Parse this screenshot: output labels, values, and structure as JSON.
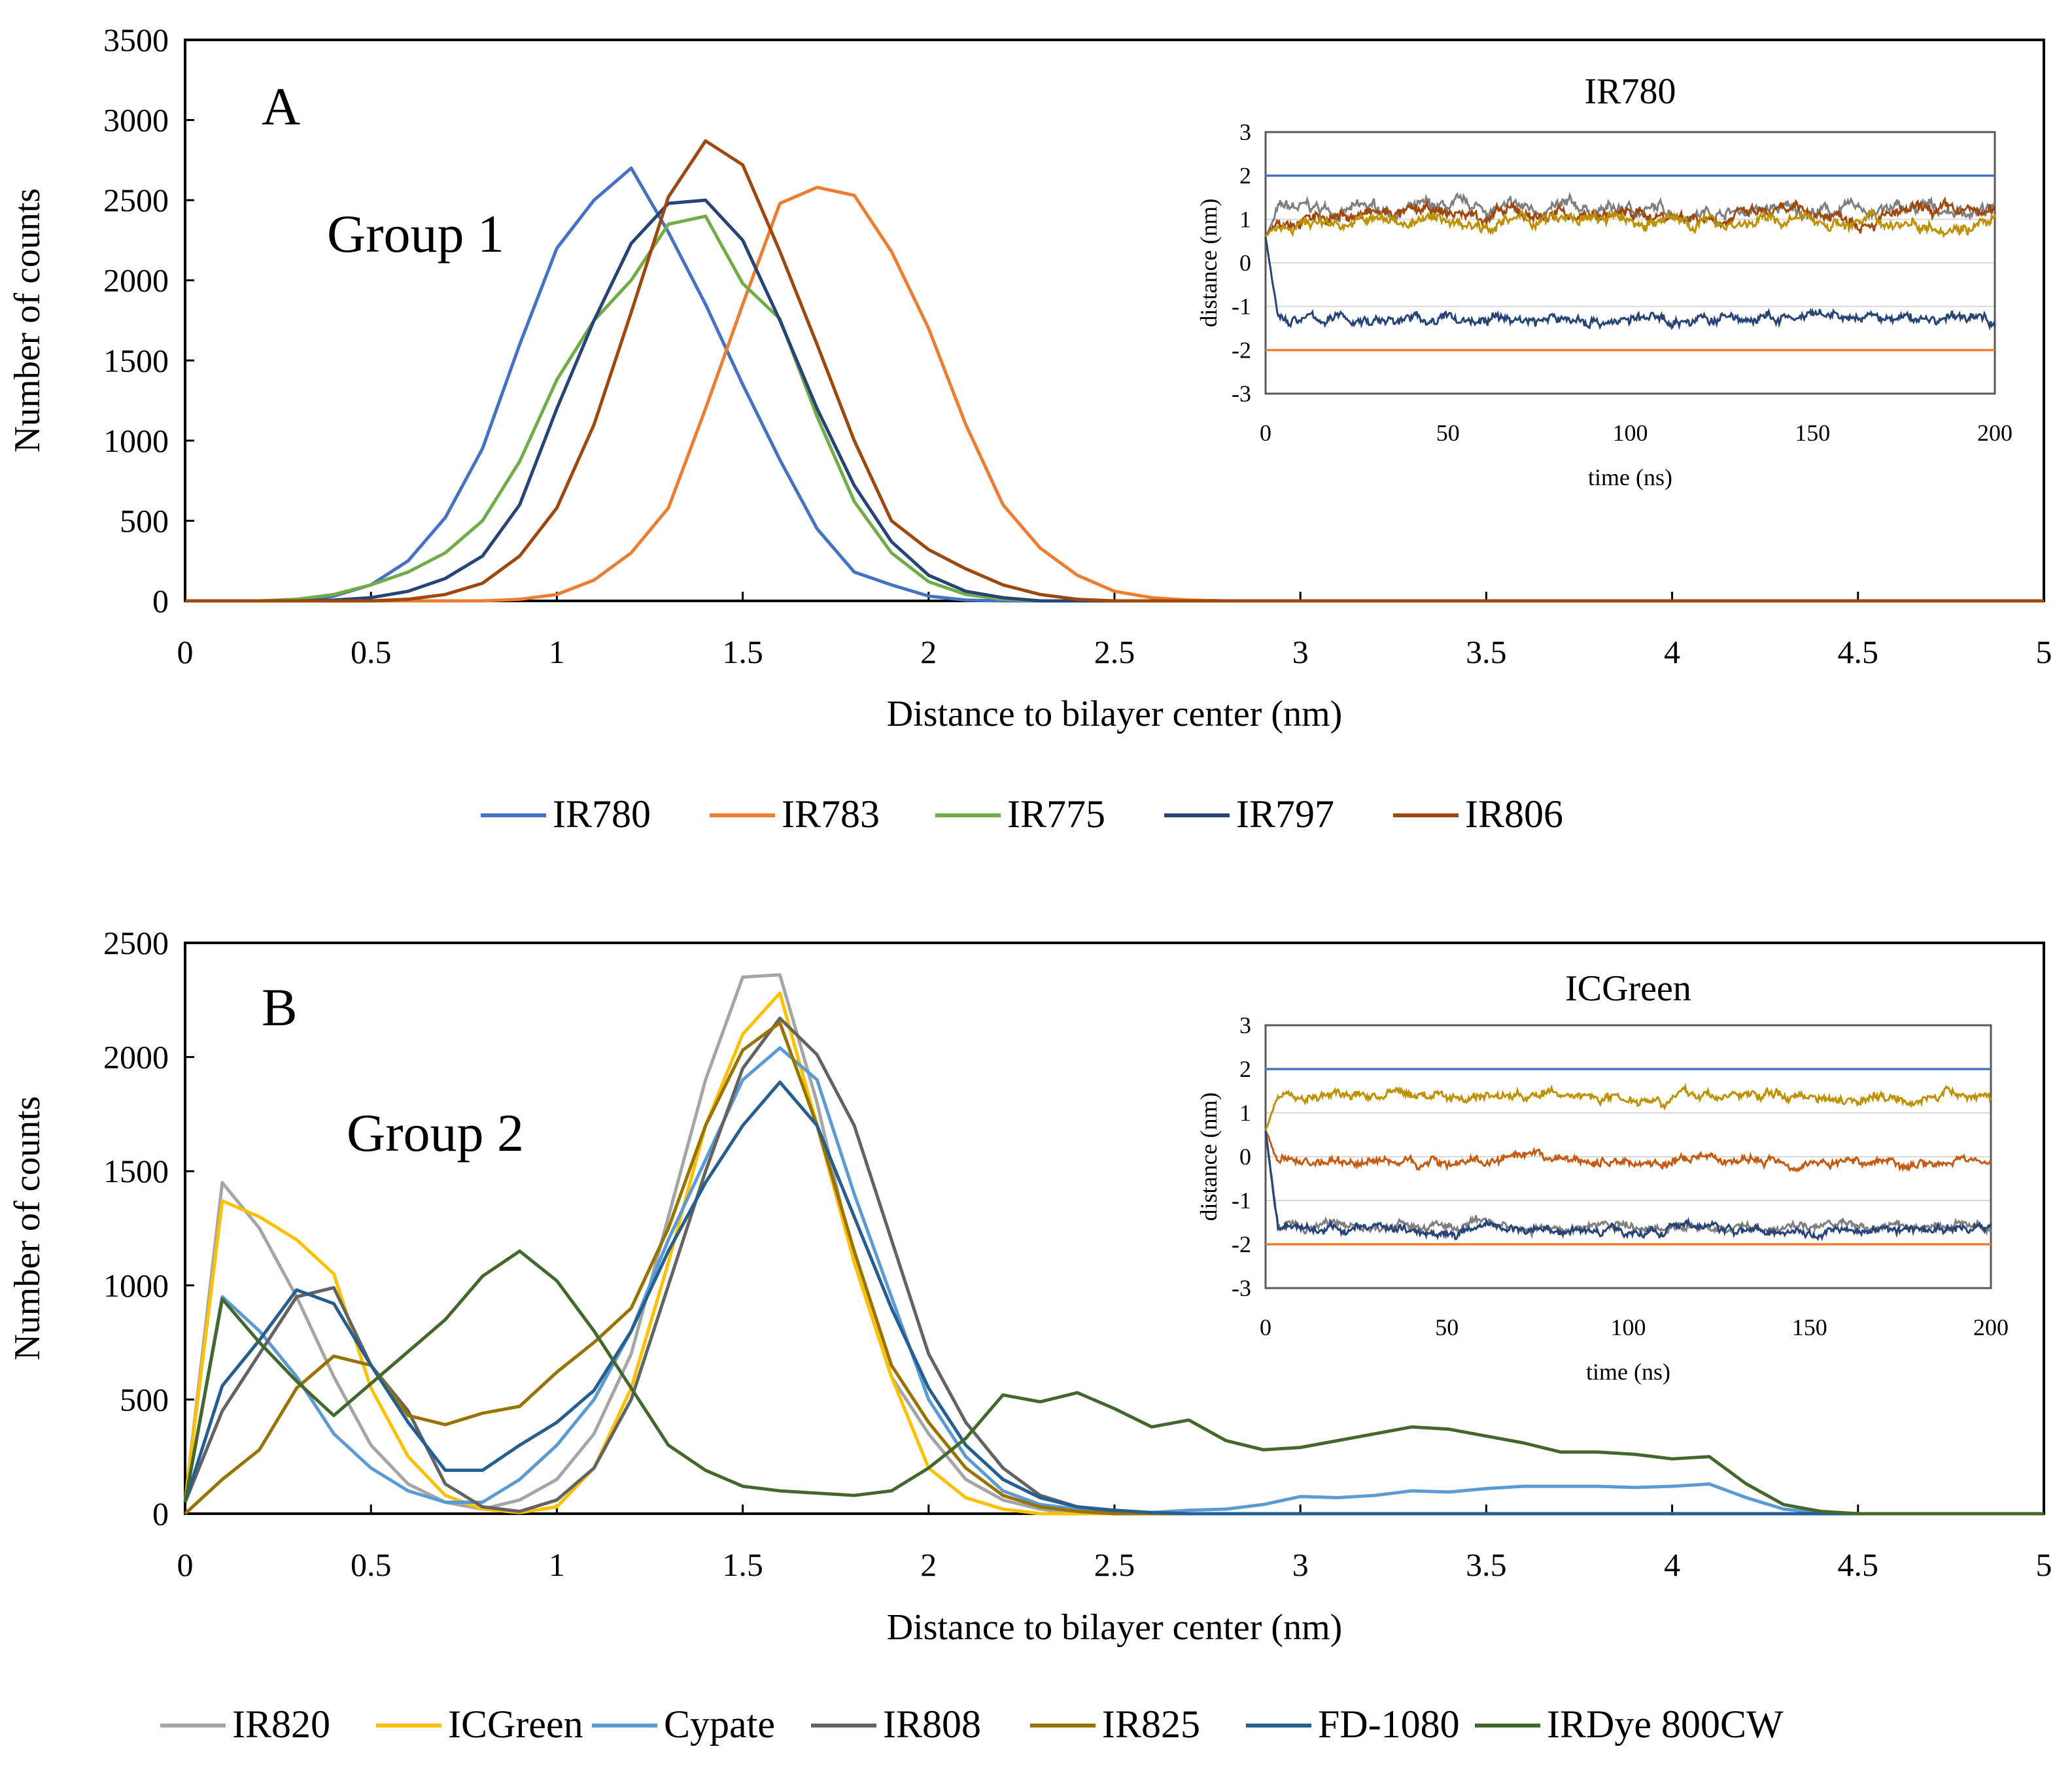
{
  "chart_data": [
    {
      "type": "line",
      "panel_label": "A",
      "annotation": "Group 1",
      "xlabel": "Distance to bilayer center (nm)",
      "ylabel": "Number of counts",
      "xlim": [
        0,
        5
      ],
      "ylim": [
        0,
        3500
      ],
      "xticks": [
        "0",
        "0.5",
        "1",
        "1.5",
        "2",
        "2.5",
        "3",
        "3.5",
        "4",
        "4.5",
        "5"
      ],
      "yticks": [
        "0",
        "500",
        "1000",
        "1500",
        "2000",
        "2500",
        "3000",
        "3500"
      ],
      "x_start": 0,
      "x_step": 0.1,
      "legend_position": "bottom",
      "series": [
        {
          "name": "IR780",
          "color": "#4472C4",
          "values": [
            0,
            0,
            0,
            0,
            30,
            100,
            250,
            520,
            950,
            1600,
            2200,
            2500,
            2700,
            2300,
            1850,
            1350,
            880,
            450,
            180,
            100,
            30,
            5,
            0,
            0,
            0,
            0,
            0,
            0,
            0,
            0,
            0,
            0,
            0,
            0,
            0,
            0,
            0,
            0,
            0,
            0,
            0,
            0,
            0,
            0,
            0,
            0,
            0,
            0,
            0,
            0,
            0
          ]
        },
        {
          "name": "IR783",
          "color": "#ED7D31",
          "values": [
            0,
            0,
            0,
            0,
            0,
            0,
            0,
            0,
            0,
            10,
            40,
            130,
            300,
            580,
            1200,
            1850,
            2480,
            2580,
            2530,
            2180,
            1700,
            1100,
            600,
            330,
            160,
            60,
            20,
            5,
            0,
            0,
            0,
            0,
            0,
            0,
            0,
            0,
            0,
            0,
            0,
            0,
            0,
            0,
            0,
            0,
            0,
            0,
            0,
            0,
            0,
            0,
            0
          ]
        },
        {
          "name": "IR775",
          "color": "#70AD47",
          "values": [
            0,
            0,
            0,
            10,
            40,
            100,
            180,
            300,
            500,
            870,
            1380,
            1750,
            2000,
            2350,
            2400,
            1980,
            1760,
            1150,
            620,
            300,
            120,
            40,
            10,
            0,
            0,
            0,
            0,
            0,
            0,
            0,
            0,
            0,
            0,
            0,
            0,
            0,
            0,
            0,
            0,
            0,
            0,
            0,
            0,
            0,
            0,
            0,
            0,
            0,
            0,
            0,
            0
          ]
        },
        {
          "name": "IR797",
          "color": "#264478",
          "values": [
            0,
            0,
            0,
            0,
            5,
            20,
            60,
            140,
            280,
            600,
            1200,
            1750,
            2230,
            2480,
            2500,
            2250,
            1750,
            1200,
            720,
            370,
            160,
            60,
            20,
            0,
            0,
            0,
            0,
            0,
            0,
            0,
            0,
            0,
            0,
            0,
            0,
            0,
            0,
            0,
            0,
            0,
            0,
            0,
            0,
            0,
            0,
            0,
            0,
            0,
            0,
            0,
            0
          ]
        },
        {
          "name": "IR806",
          "color": "#9E480E",
          "values": [
            0,
            0,
            0,
            0,
            0,
            0,
            10,
            40,
            110,
            280,
            580,
            1100,
            1800,
            2520,
            2870,
            2720,
            2180,
            1600,
            1000,
            500,
            320,
            200,
            100,
            40,
            10,
            0,
            0,
            0,
            0,
            0,
            0,
            0,
            0,
            0,
            0,
            0,
            0,
            0,
            0,
            0,
            0,
            0,
            0,
            0,
            0,
            0,
            0,
            0,
            0,
            0,
            0
          ]
        }
      ],
      "inset": {
        "title": "IR780",
        "xlabel": "time (ns)",
        "ylabel": "distance (nm)",
        "xlim": [
          0,
          200
        ],
        "ylim": [
          -3,
          3
        ],
        "xticks": [
          "0",
          "50",
          "100",
          "150",
          "200"
        ],
        "yticks": [
          "3",
          "2",
          "1",
          "0",
          "-1",
          "-2",
          "-3"
        ],
        "series": [
          {
            "color": "#4472C4",
            "mean": 2,
            "noise": 0
          },
          {
            "color": "#ED7D31",
            "mean": -2,
            "noise": 0
          },
          {
            "color": "#7F7F7F",
            "mean": 1.2,
            "noise": 0.25
          },
          {
            "color": "#9E480E",
            "mean": 1.1,
            "noise": 0.25
          },
          {
            "color": "#BF9000",
            "mean": 0.95,
            "noise": 0.25
          },
          {
            "color": "#264478",
            "mean": -1.3,
            "noise": 0.22
          }
        ]
      }
    },
    {
      "type": "line",
      "panel_label": "B",
      "annotation": "Group 2",
      "xlabel": "Distance to bilayer center (nm)",
      "ylabel": "Number of counts",
      "xlim": [
        0,
        5
      ],
      "ylim": [
        0,
        2500
      ],
      "xticks": [
        "0",
        "0.5",
        "1",
        "1.5",
        "2",
        "2.5",
        "3",
        "3.5",
        "4",
        "4.5",
        "5"
      ],
      "yticks": [
        "0",
        "500",
        "1000",
        "1500",
        "2000",
        "2500"
      ],
      "x_start": 0,
      "x_step": 0.1,
      "legend_position": "bottom",
      "series": [
        {
          "name": "IR820",
          "color": "#A5A5A5",
          "values": [
            50,
            1450,
            1250,
            950,
            600,
            300,
            130,
            50,
            20,
            60,
            150,
            350,
            700,
            1300,
            1900,
            2350,
            2360,
            1800,
            1100,
            600,
            350,
            150,
            60,
            20,
            0,
            0,
            0,
            0,
            0,
            0,
            0,
            0,
            0,
            0,
            0,
            0,
            0,
            0,
            0,
            0,
            0,
            0,
            0,
            0,
            0,
            0,
            0,
            0,
            0,
            0,
            0
          ]
        },
        {
          "name": "ICGreen",
          "color": "#FFC000",
          "values": [
            50,
            1370,
            1300,
            1200,
            1050,
            550,
            250,
            80,
            20,
            5,
            30,
            200,
            550,
            1100,
            1700,
            2100,
            2280,
            1700,
            1100,
            600,
            200,
            70,
            20,
            0,
            0,
            0,
            0,
            0,
            0,
            0,
            0,
            0,
            0,
            0,
            0,
            0,
            0,
            0,
            0,
            0,
            0,
            0,
            0,
            0,
            0,
            0,
            0,
            0,
            0,
            0,
            0
          ]
        },
        {
          "name": "Cypate",
          "color": "#5B9BD5",
          "values": [
            50,
            950,
            800,
            600,
            350,
            200,
            100,
            50,
            50,
            150,
            300,
            500,
            800,
            1200,
            1550,
            1900,
            2040,
            1900,
            1400,
            950,
            500,
            250,
            100,
            40,
            20,
            10,
            5,
            15,
            20,
            40,
            75,
            70,
            80,
            100,
            95,
            110,
            120,
            120,
            120,
            115,
            120,
            130,
            70,
            20,
            5,
            0,
            0,
            0,
            0,
            0,
            0
          ]
        },
        {
          "name": "IR808",
          "color": "#636363",
          "values": [
            50,
            450,
            700,
            950,
            990,
            650,
            450,
            130,
            30,
            10,
            60,
            200,
            500,
            1000,
            1500,
            1950,
            2170,
            2010,
            1700,
            1200,
            700,
            400,
            200,
            80,
            30,
            10,
            0,
            0,
            0,
            0,
            0,
            0,
            0,
            0,
            0,
            0,
            0,
            0,
            0,
            0,
            0,
            0,
            0,
            0,
            0,
            0,
            0,
            0,
            0,
            0,
            0
          ]
        },
        {
          "name": "IR825",
          "color": "#997300",
          "values": [
            0,
            150,
            280,
            550,
            690,
            650,
            430,
            390,
            440,
            470,
            620,
            750,
            900,
            1250,
            1700,
            2030,
            2150,
            1700,
            1150,
            650,
            400,
            200,
            80,
            30,
            10,
            0,
            0,
            0,
            0,
            0,
            0,
            0,
            0,
            0,
            0,
            0,
            0,
            0,
            0,
            0,
            0,
            0,
            0,
            0,
            0,
            0,
            0,
            0,
            0,
            0,
            0
          ]
        },
        {
          "name": "FD-1080",
          "color": "#255E91",
          "values": [
            50,
            560,
            760,
            980,
            920,
            650,
            400,
            190,
            190,
            300,
            400,
            540,
            800,
            1150,
            1450,
            1700,
            1890,
            1700,
            1300,
            900,
            550,
            300,
            150,
            70,
            30,
            15,
            5,
            0,
            0,
            0,
            0,
            0,
            0,
            0,
            0,
            0,
            0,
            0,
            0,
            0,
            0,
            0,
            0,
            0,
            0,
            0,
            0,
            0,
            0,
            0,
            0
          ]
        },
        {
          "name": "IRDye 800CW",
          "color": "#43682B",
          "values": [
            50,
            940,
            750,
            580,
            430,
            570,
            710,
            850,
            1040,
            1150,
            1020,
            800,
            550,
            300,
            190,
            120,
            100,
            90,
            80,
            100,
            200,
            330,
            520,
            490,
            530,
            460,
            380,
            410,
            320,
            280,
            290,
            320,
            350,
            380,
            370,
            340,
            310,
            270,
            270,
            260,
            240,
            250,
            130,
            40,
            10,
            0,
            0,
            0,
            0,
            0,
            0
          ]
        }
      ],
      "inset": {
        "title": "ICGreen",
        "xlabel": "time (ns)",
        "ylabel": "distance (nm)",
        "xlim": [
          0,
          200
        ],
        "ylim": [
          -3,
          3
        ],
        "xticks": [
          "0",
          "50",
          "100",
          "150",
          "200"
        ],
        "yticks": [
          "3",
          "2",
          "1",
          "0",
          "-1",
          "-2",
          "-3"
        ],
        "series": [
          {
            "color": "#4472C4",
            "mean": 2,
            "noise": 0
          },
          {
            "color": "#ED7D31",
            "mean": -2,
            "noise": 0
          },
          {
            "color": "#BF9000",
            "mean": 1.4,
            "noise": 0.2
          },
          {
            "color": "#C55A11",
            "mean": -0.1,
            "noise": 0.18
          },
          {
            "color": "#7F7F7F",
            "mean": -1.6,
            "noise": 0.18
          },
          {
            "color": "#264478",
            "mean": -1.65,
            "noise": 0.18
          }
        ]
      }
    }
  ]
}
